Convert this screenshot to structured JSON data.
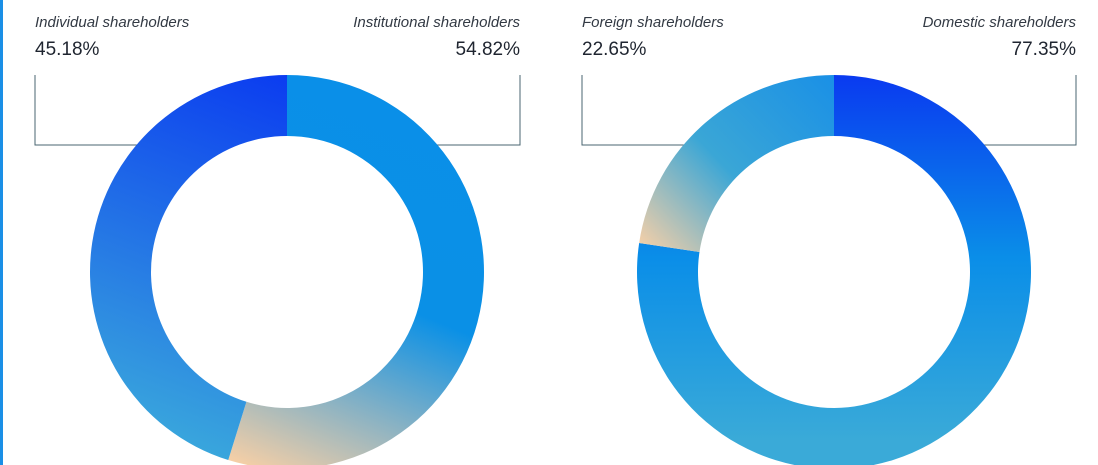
{
  "chart_data": [
    {
      "type": "donut",
      "categories": [
        "Individual shareholders",
        "Institutional shareholders"
      ],
      "values": [
        45.18,
        54.82
      ],
      "value_labels": [
        "45.18%",
        "54.82%"
      ],
      "colors": [
        "#0b3cf0",
        "#0a8fe8"
      ]
    },
    {
      "type": "donut",
      "categories": [
        "Foreign shareholders",
        "Domestic shareholders"
      ],
      "values": [
        22.65,
        77.35
      ],
      "value_labels": [
        "22.65%",
        "77.35%"
      ],
      "colors": [
        "#1a90e6",
        "#0a3af0"
      ]
    }
  ]
}
